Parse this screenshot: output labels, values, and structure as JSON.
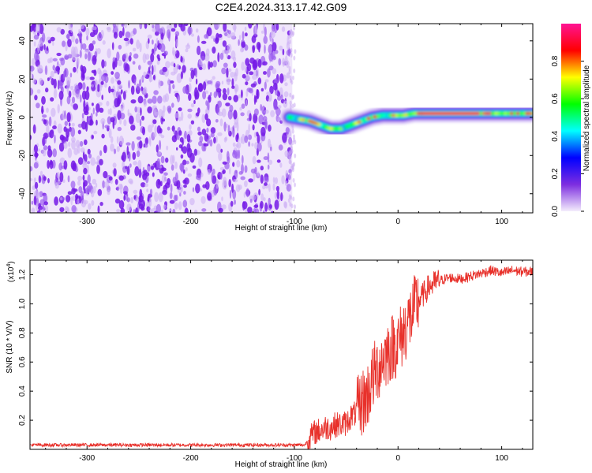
{
  "title": "C2E4.2024.313.17.42.G09",
  "chart_data": [
    {
      "type": "heatmap",
      "name": "spectrogram",
      "xlabel": "Height of straight line (km)",
      "ylabel": "Frequency (Hz)",
      "xlim": [
        -355,
        130
      ],
      "ylim": [
        -50,
        49
      ],
      "xticks": [
        -300,
        -200,
        -100,
        0,
        100
      ],
      "yticks": [
        -40,
        -20,
        0,
        20,
        40
      ],
      "noise_region": {
        "x_range": [
          -355,
          -102
        ],
        "y_range": [
          -50,
          49
        ],
        "dominant_color": "#7d2ee0"
      },
      "signal_ridge": {
        "x": [
          -105,
          -95,
          -85,
          -75,
          -65,
          -55,
          -45,
          -35,
          -25,
          -15,
          -5,
          5,
          15,
          25,
          40,
          60,
          80,
          95,
          110,
          125,
          130
        ],
        "y": [
          0,
          -1,
          -2,
          -4,
          -6,
          -6,
          -4,
          -2,
          0,
          1,
          1,
          1,
          2,
          2,
          2,
          2,
          2,
          2,
          2,
          2,
          2
        ]
      },
      "colorbar": {
        "label": "Normalized spectral amplitude",
        "range": [
          0,
          1
        ],
        "ticks": [
          "0.0",
          "0.2",
          "0.4",
          "0.6",
          "0.8"
        ],
        "colormap": [
          "#f4edfc",
          "#7d2ee0",
          "#0000ff",
          "#00ffff",
          "#00ff00",
          "#ffff00",
          "#ff0000",
          "#ff1493"
        ]
      }
    },
    {
      "type": "line",
      "name": "snr",
      "xlabel": "Height of straight line (km)",
      "ylabel": "SNR (10 * V/V)",
      "y_multiplier": "(x10",
      "y_multiplier_exp": "4",
      "y_multiplier_close": ")",
      "xlim": [
        -355,
        130
      ],
      "ylim": [
        0,
        13000
      ],
      "xticks": [
        -300,
        -200,
        -100,
        0,
        100
      ],
      "yticks": [
        2000,
        4000,
        6000,
        8000,
        10000,
        12000
      ],
      "ytick_labels": [
        "0.2",
        "0.4",
        "0.6",
        "0.8",
        "1.0",
        "1.2"
      ],
      "series": [
        {
          "color": "#e8312b",
          "x": [
            -355,
            -300,
            -250,
            -200,
            -150,
            -100,
            -90,
            -85,
            -80,
            -75,
            -70,
            -65,
            -60,
            -55,
            -50,
            -45,
            -40,
            -35,
            -30,
            -25,
            -20,
            -15,
            -10,
            -5,
            0,
            5,
            10,
            15,
            20,
            25,
            30,
            40,
            50,
            60,
            70,
            80,
            90,
            100,
            110,
            120,
            130
          ],
          "y": [
            300,
            300,
            300,
            300,
            300,
            300,
            300,
            800,
            1200,
            1300,
            1500,
            1500,
            1700,
            1700,
            1800,
            2300,
            2500,
            3200,
            3600,
            4800,
            5500,
            6200,
            6700,
            7100,
            7300,
            8000,
            8800,
            9500,
            10200,
            10700,
            11200,
            11600,
            11800,
            11700,
            11900,
            12100,
            12300,
            12100,
            12300,
            12200,
            12200
          ]
        }
      ]
    }
  ]
}
